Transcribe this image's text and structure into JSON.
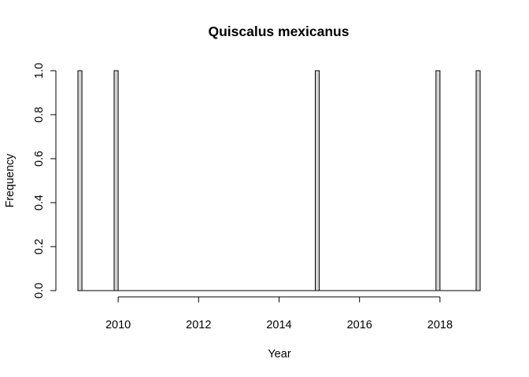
{
  "chart_data": {
    "type": "bar",
    "title": "Quiscalus mexicanus",
    "xlabel": "Year",
    "ylabel": "Frequency",
    "xlim": [
      2009,
      2019
    ],
    "ylim": [
      0,
      1
    ],
    "x_ticks": [
      2010,
      2012,
      2014,
      2016,
      2018
    ],
    "x_tick_labels": [
      "2010",
      "2012",
      "2014",
      "2016",
      "2018"
    ],
    "y_ticks": [
      0,
      0.2,
      0.4,
      0.6,
      0.8,
      1
    ],
    "y_tick_labels": [
      "0.0",
      "0.2",
      "0.4",
      "0.6",
      "0.8",
      "1.0"
    ],
    "bin_width": 0.1,
    "bars": [
      {
        "x_start": 2009.0,
        "value": 1
      },
      {
        "x_start": 2009.9,
        "value": 1
      },
      {
        "x_start": 2014.9,
        "value": 1
      },
      {
        "x_start": 2017.9,
        "value": 1
      },
      {
        "x_start": 2018.9,
        "value": 1
      }
    ],
    "bar_color": "#d3d3d3",
    "border_color": "#000000",
    "grid": false,
    "legend": "none"
  }
}
